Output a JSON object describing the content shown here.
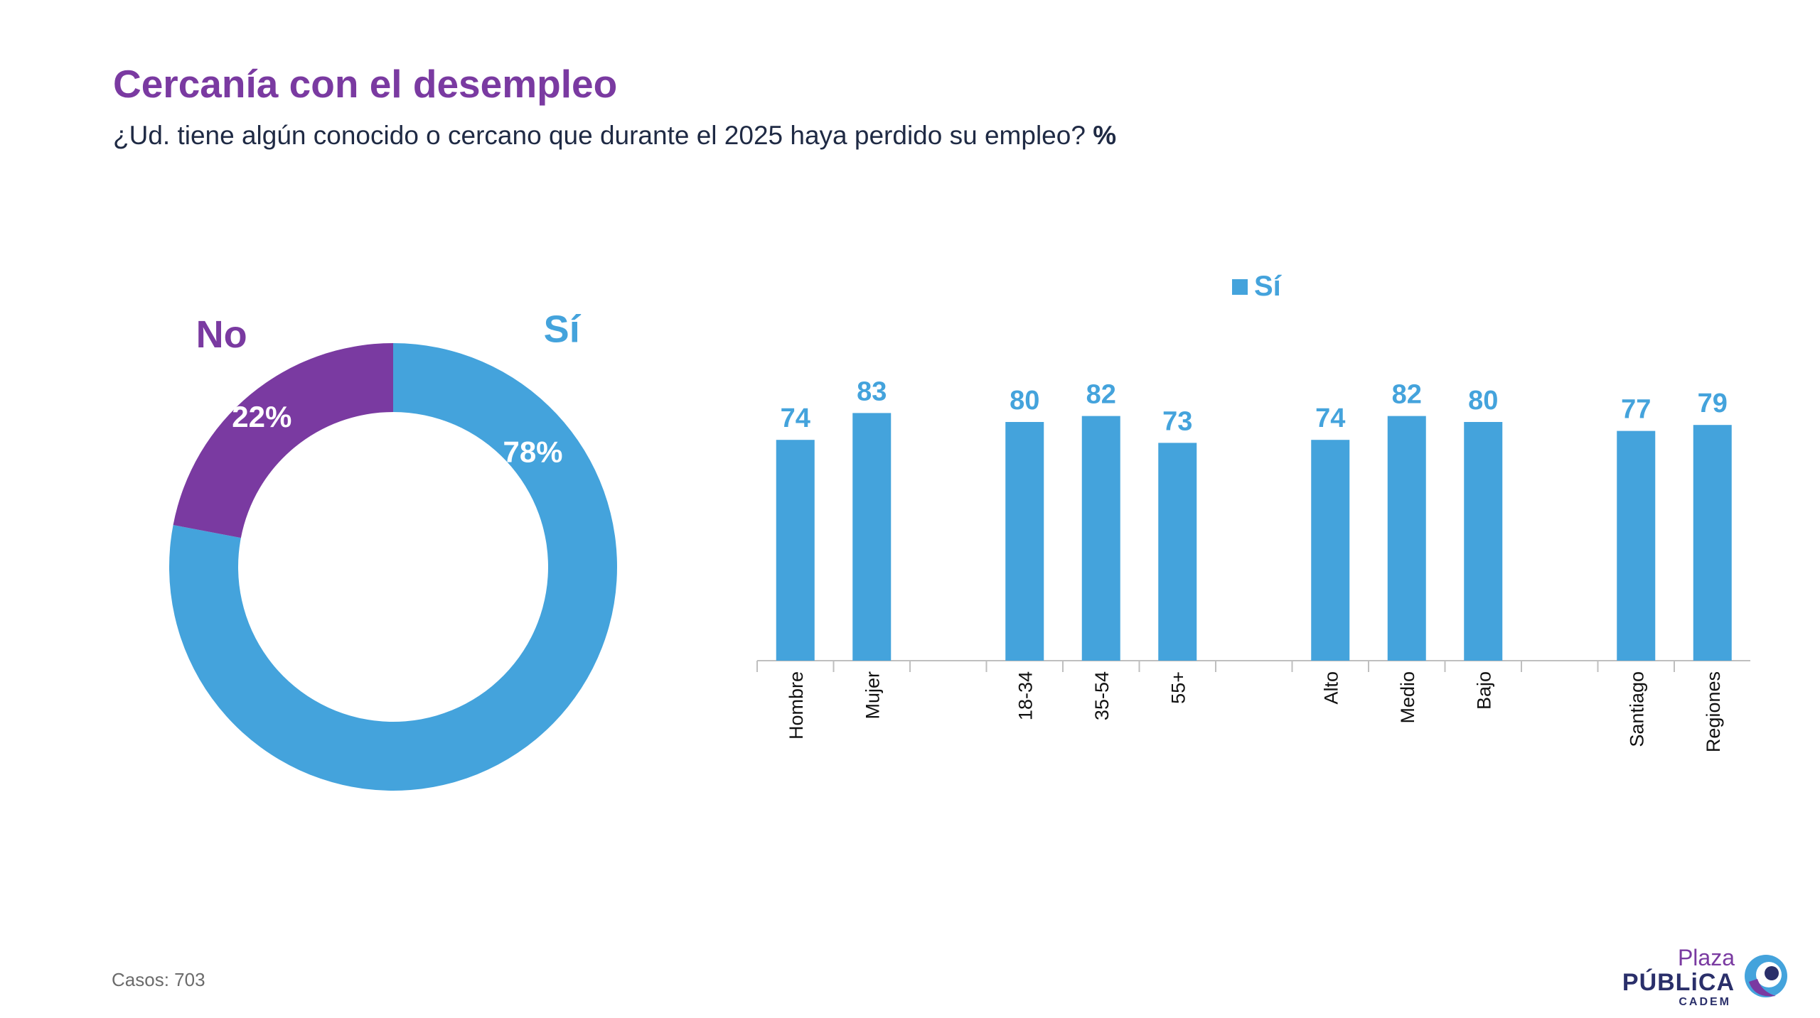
{
  "header": {
    "title": "Cercanía con el desempleo",
    "subtitle": "¿Ud. tiene algún conocido o cercano que durante el 2025 haya perdido su empleo?",
    "subtitle_unit": "%"
  },
  "footer": {
    "cases": "Casos: 703"
  },
  "logo": {
    "plaza": "Plaza",
    "publica": "PÚBLiCA",
    "cadem": "CADEM"
  },
  "colors": {
    "si": "#44a3dc",
    "no": "#7a3aa1",
    "axis": "#bfbfbf"
  },
  "chart_data": [
    {
      "type": "pie",
      "variant": "donut",
      "slices": [
        {
          "name": "Sí",
          "value": 78,
          "label": "78%"
        },
        {
          "name": "No",
          "value": 22,
          "label": "22%"
        }
      ]
    },
    {
      "type": "bar",
      "legend": "Sí",
      "legend_position": "top",
      "groups": [
        {
          "categories": [
            "Hombre",
            "Mujer"
          ],
          "values": [
            74,
            83
          ]
        },
        {
          "categories": [
            "18-34",
            "35-54",
            "55+"
          ],
          "values": [
            80,
            82,
            73
          ]
        },
        {
          "categories": [
            "Alto",
            "Medio",
            "Bajo"
          ],
          "values": [
            74,
            82,
            80
          ]
        },
        {
          "categories": [
            "Santiago",
            "Regiones"
          ],
          "values": [
            77,
            79
          ]
        }
      ],
      "ylim": [
        0,
        100
      ],
      "grid": false
    }
  ]
}
